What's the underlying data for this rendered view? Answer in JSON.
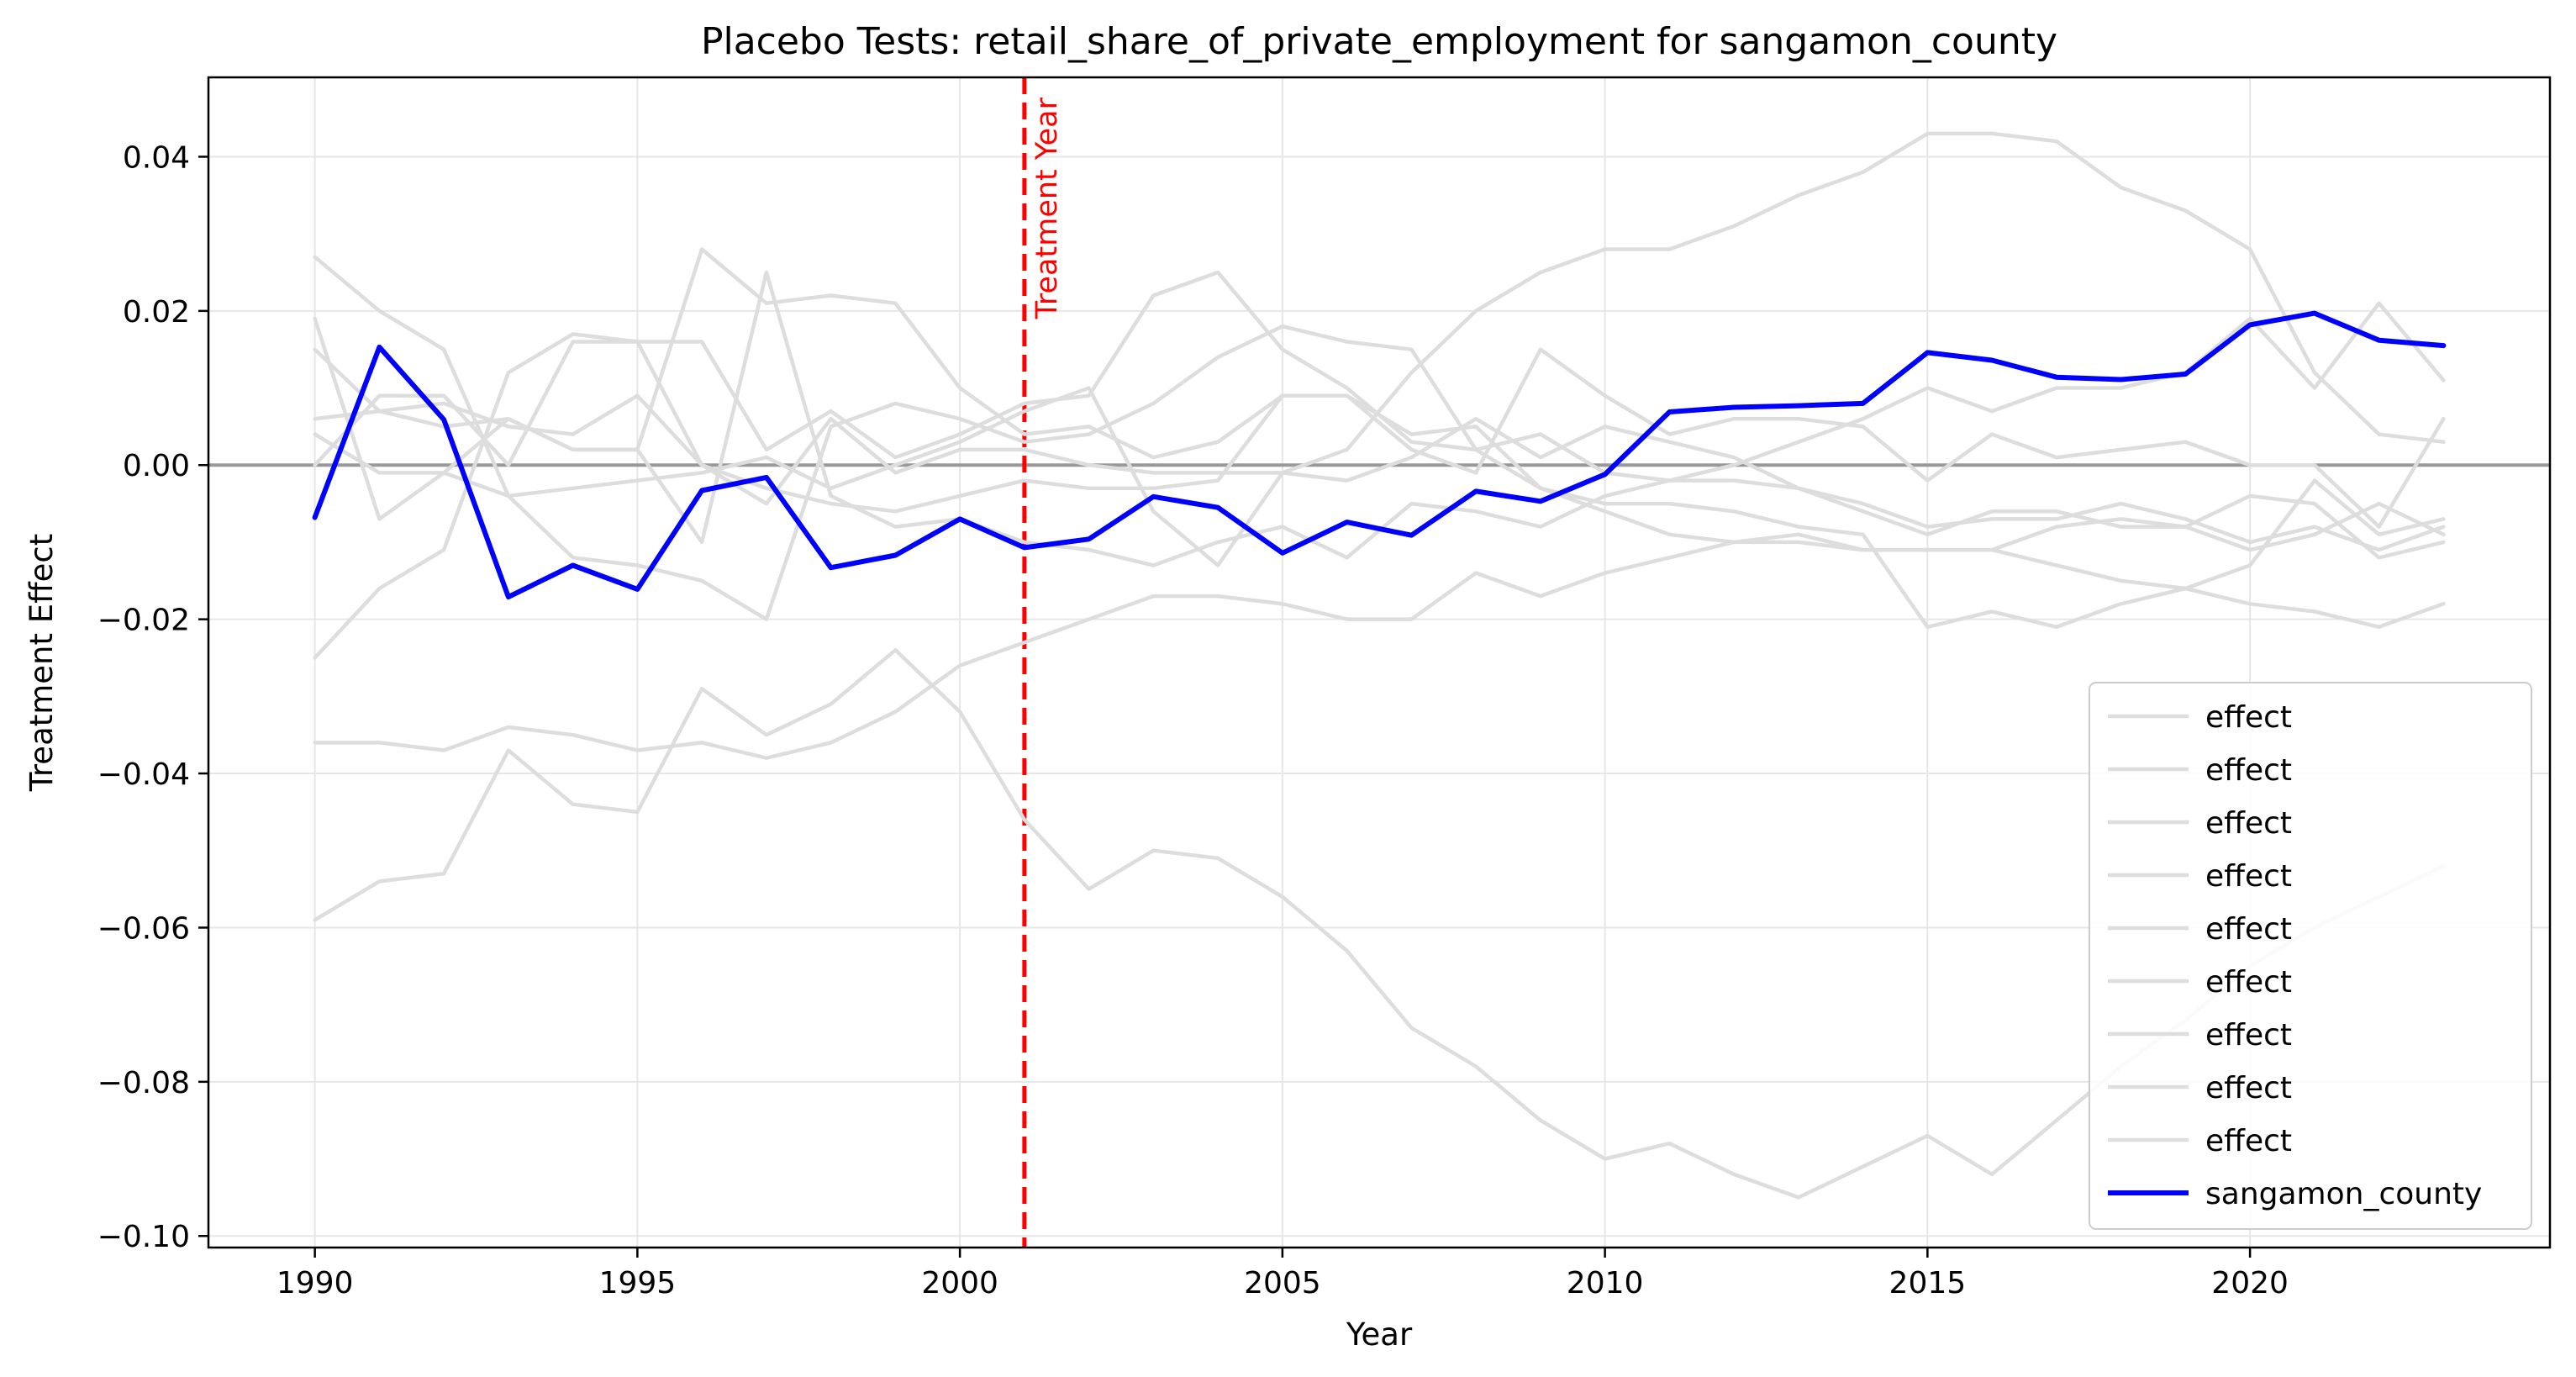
{
  "chart_data": {
    "type": "line",
    "title": "Placebo Tests: retail_share_of_private_employment for sangamon_county",
    "xlabel": "Year",
    "ylabel": "Treatment Effect",
    "xlim": [
      1988.35,
      2024.65
    ],
    "ylim": [
      -0.1015,
      0.0503
    ],
    "xticks": [
      1990,
      1995,
      2000,
      2005,
      2010,
      2015,
      2020
    ],
    "xtick_labels": [
      "1990",
      "1995",
      "2000",
      "2005",
      "2010",
      "2015",
      "2020"
    ],
    "yticks": [
      0.04,
      0.02,
      0.0,
      -0.02,
      -0.04,
      -0.06,
      -0.08,
      -0.1
    ],
    "ytick_labels": [
      "0.04",
      "0.02",
      "0.00",
      "−0.02",
      "−0.04",
      "−0.06",
      "−0.08",
      "−0.10"
    ],
    "grid": true,
    "legend_position": "bottom-right",
    "zero_line": {
      "y": 0,
      "color": "#999999"
    },
    "treatment_line": {
      "x": 2001,
      "label": "Treatment Year",
      "color": "#ff0000"
    },
    "x": [
      1990,
      1991,
      1992,
      1993,
      1994,
      1995,
      1996,
      1997,
      1998,
      1999,
      2000,
      2001,
      2002,
      2003,
      2004,
      2005,
      2006,
      2007,
      2008,
      2009,
      2010,
      2011,
      2012,
      2013,
      2014,
      2015,
      2016,
      2017,
      2018,
      2019,
      2020,
      2021,
      2022,
      2023
    ],
    "series": [
      {
        "name": "effect",
        "color": "#dddddd",
        "values": [
          0.019,
          -0.007,
          -0.001,
          0.006,
          0.002,
          0.002,
          -0.01,
          0.025,
          -0.004,
          -0.008,
          -0.007,
          -0.01,
          -0.011,
          -0.013,
          -0.01,
          -0.008,
          -0.012,
          -0.005,
          -0.006,
          -0.008,
          -0.004,
          -0.002,
          0.0,
          0.003,
          0.006,
          0.01,
          0.007,
          0.01,
          0.01,
          0.012,
          0.019,
          0.01,
          0.021,
          0.011
        ]
      },
      {
        "name": "effect",
        "color": "#dddddd",
        "values": [
          0.015,
          0.007,
          0.005,
          0.006,
          0.002,
          0.002,
          0.028,
          0.021,
          0.022,
          0.021,
          0.01,
          0.004,
          0.005,
          0.001,
          0.003,
          0.009,
          0.009,
          0.004,
          0.005,
          -0.003,
          -0.006,
          -0.009,
          -0.01,
          -0.01,
          -0.011,
          -0.011,
          -0.011,
          -0.008,
          -0.007,
          -0.008,
          -0.004,
          -0.005,
          -0.012,
          -0.01
        ]
      },
      {
        "name": "effect",
        "color": "#dddddd",
        "values": [
          -0.025,
          -0.016,
          -0.011,
          0.012,
          0.017,
          0.016,
          0.016,
          0.002,
          0.007,
          0.001,
          0.004,
          0.008,
          0.009,
          0.022,
          0.025,
          0.015,
          0.01,
          0.003,
          0.002,
          0.004,
          -0.001,
          -0.002,
          -0.002,
          -0.003,
          -0.006,
          -0.009,
          -0.006,
          -0.006,
          -0.008,
          -0.008,
          -0.011,
          -0.009,
          -0.005,
          -0.009
        ]
      },
      {
        "name": "effect",
        "color": "#dddddd",
        "values": [
          0.004,
          -0.001,
          -0.001,
          -0.004,
          -0.003,
          -0.002,
          -0.001,
          0.001,
          -0.003,
          0.0,
          0.003,
          0.007,
          0.01,
          -0.006,
          -0.013,
          -0.001,
          0.002,
          0.012,
          0.02,
          0.025,
          0.028,
          0.028,
          0.031,
          0.035,
          0.038,
          0.043,
          0.043,
          0.042,
          0.036,
          0.033,
          0.028,
          0.012,
          0.004,
          0.003
        ]
      },
      {
        "name": "effect",
        "color": "#dddddd",
        "values": [
          0.027,
          0.02,
          0.015,
          -0.004,
          -0.012,
          -0.013,
          -0.015,
          -0.02,
          0.005,
          0.008,
          0.006,
          0.003,
          0.004,
          0.008,
          0.014,
          0.018,
          0.016,
          0.015,
          0.002,
          -0.003,
          -0.005,
          -0.005,
          -0.006,
          -0.008,
          -0.009,
          -0.021,
          -0.019,
          -0.021,
          -0.018,
          -0.016,
          -0.013,
          -0.002,
          -0.009,
          -0.007
        ]
      },
      {
        "name": "effect",
        "color": "#dddddd",
        "values": [
          -0.036,
          -0.036,
          -0.037,
          -0.034,
          -0.035,
          -0.037,
          -0.036,
          -0.038,
          -0.036,
          -0.032,
          -0.026,
          -0.023,
          -0.02,
          -0.017,
          -0.017,
          -0.018,
          -0.02,
          -0.02,
          -0.014,
          -0.017,
          -0.014,
          -0.012,
          -0.01,
          -0.009,
          -0.011,
          -0.011,
          -0.011,
          -0.013,
          -0.015,
          -0.016,
          -0.018,
          -0.019,
          -0.021,
          -0.018
        ]
      },
      {
        "name": "effect",
        "color": "#dddddd",
        "values": [
          -0.059,
          -0.054,
          -0.053,
          -0.037,
          -0.044,
          -0.045,
          -0.029,
          -0.035,
          -0.031,
          -0.024,
          -0.032,
          -0.046,
          -0.055,
          -0.05,
          -0.051,
          -0.056,
          -0.063,
          -0.073,
          -0.078,
          -0.085,
          -0.09,
          -0.088,
          -0.092,
          -0.095,
          -0.091,
          -0.087,
          -0.092,
          -0.085,
          -0.078,
          -0.072,
          -0.065,
          -0.06,
          -0.056,
          -0.052
        ]
      },
      {
        "name": "effect",
        "color": "#dddddd",
        "values": [
          0.006,
          0.007,
          0.008,
          0.005,
          0.004,
          0.009,
          0.0,
          -0.003,
          -0.005,
          -0.006,
          -0.004,
          -0.002,
          -0.003,
          -0.003,
          -0.002,
          0.009,
          0.009,
          0.002,
          -0.001,
          0.015,
          0.009,
          0.004,
          0.006,
          0.006,
          0.005,
          -0.002,
          0.004,
          0.001,
          0.002,
          0.003,
          0.0,
          0.0,
          -0.008,
          0.006
        ]
      },
      {
        "name": "effect",
        "color": "#dddddd",
        "values": [
          0.0,
          0.009,
          0.009,
          0.0,
          0.016,
          0.016,
          0.0,
          -0.005,
          0.006,
          -0.001,
          0.002,
          0.002,
          0.0,
          -0.001,
          -0.001,
          -0.001,
          -0.002,
          0.001,
          0.006,
          0.001,
          0.005,
          0.003,
          0.001,
          -0.003,
          -0.005,
          -0.008,
          -0.007,
          -0.007,
          -0.005,
          -0.007,
          -0.01,
          -0.008,
          -0.011,
          -0.008
        ]
      },
      {
        "name": "sangamon_county",
        "color": "#0000ff",
        "values": [
          -0.0068,
          0.0153,
          0.0059,
          -0.0171,
          -0.013,
          -0.0161,
          -0.0033,
          -0.0016,
          -0.0133,
          -0.0117,
          -0.007,
          -0.0107,
          -0.0096,
          -0.0041,
          -0.0055,
          -0.0114,
          -0.0074,
          -0.0091,
          -0.0034,
          -0.0047,
          -0.0012,
          0.0069,
          0.0075,
          0.0077,
          0.008,
          0.0146,
          0.0136,
          0.0114,
          0.0111,
          0.0118,
          0.0182,
          0.0197,
          0.0162,
          0.0155
        ]
      }
    ]
  }
}
